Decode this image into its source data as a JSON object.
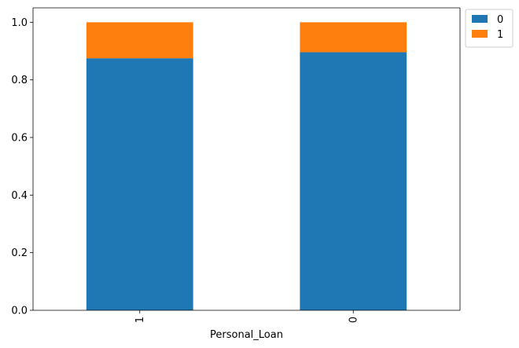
{
  "chart_data": {
    "type": "bar",
    "stacked": true,
    "categories": [
      "1",
      "0"
    ],
    "series": [
      {
        "name": "0",
        "values": [
          0.875,
          0.896
        ],
        "color": "#1f77b4"
      },
      {
        "name": "1",
        "values": [
          0.125,
          0.104
        ],
        "color": "#ff7f0e"
      }
    ],
    "xlabel": "Personal_Loan",
    "ylabel": "",
    "ylim": [
      0,
      1.05
    ],
    "yticks": [
      0.0,
      0.2,
      0.4,
      0.6,
      0.8,
      1.0
    ],
    "ytick_labels": [
      "0.0",
      "0.2",
      "0.4",
      "0.6",
      "0.8",
      "1.0"
    ],
    "xtick_rotation": "vertical",
    "grid": false,
    "legend_placement": "outside-top-right"
  }
}
